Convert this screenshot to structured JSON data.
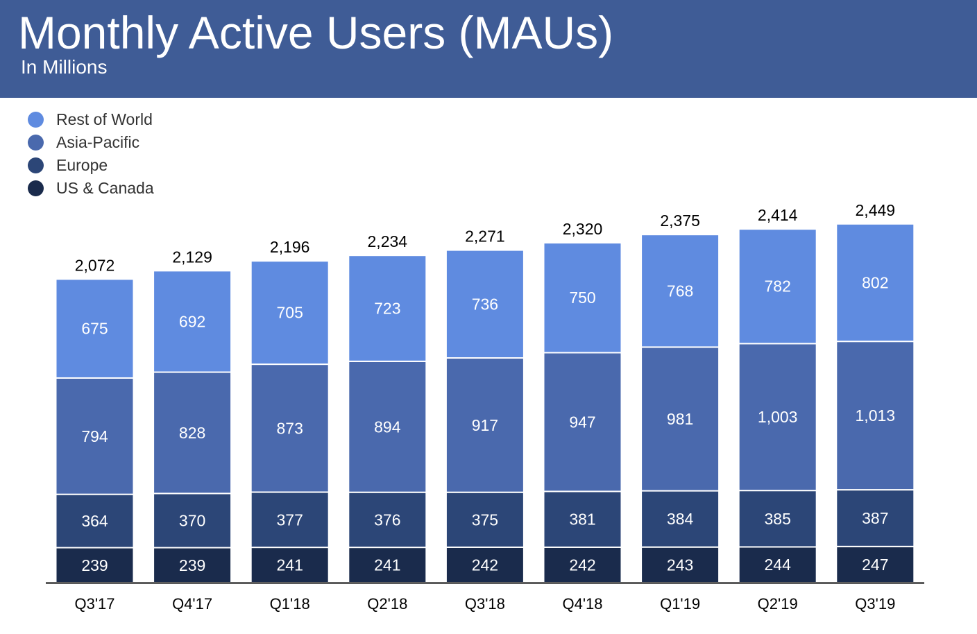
{
  "header": {
    "title": "Monthly Active Users (MAUs)",
    "subtitle": "In Millions"
  },
  "colors": {
    "header_bg": "#3f5c96",
    "rest_of_world": "#5f8be0",
    "asia_pacific": "#4a69ad",
    "europe": "#2c4677",
    "us_canada": "#1a2b4c"
  },
  "chart_data": {
    "type": "bar",
    "stacked": true,
    "title": "Monthly Active Users (MAUs)",
    "subtitle": "In Millions",
    "legend_position": "top-left",
    "grid": false,
    "categories": [
      "Q3'17",
      "Q4'17",
      "Q1'18",
      "Q2'18",
      "Q3'18",
      "Q4'18",
      "Q1'19",
      "Q2'19",
      "Q3'19"
    ],
    "series": [
      {
        "name": "US & Canada",
        "color": "#1a2b4c",
        "values": [
          239,
          239,
          241,
          241,
          242,
          242,
          243,
          244,
          247
        ],
        "labels": [
          "239",
          "239",
          "241",
          "241",
          "242",
          "242",
          "243",
          "244",
          "247"
        ]
      },
      {
        "name": "Europe",
        "color": "#2c4677",
        "values": [
          364,
          370,
          377,
          376,
          375,
          381,
          384,
          385,
          387
        ],
        "labels": [
          "364",
          "370",
          "377",
          "376",
          "375",
          "381",
          "384",
          "385",
          "387"
        ]
      },
      {
        "name": "Asia-Pacific",
        "color": "#4a69ad",
        "values": [
          794,
          828,
          873,
          894,
          917,
          947,
          981,
          1003,
          1013
        ],
        "labels": [
          "794",
          "828",
          "873",
          "894",
          "917",
          "947",
          "981",
          "1,003",
          "1,013"
        ]
      },
      {
        "name": "Rest of World",
        "color": "#5f8be0",
        "values": [
          675,
          692,
          705,
          723,
          736,
          750,
          768,
          782,
          802
        ],
        "labels": [
          "675",
          "692",
          "705",
          "723",
          "736",
          "750",
          "768",
          "782",
          "802"
        ]
      }
    ],
    "totals": [
      2072,
      2129,
      2196,
      2234,
      2271,
      2320,
      2375,
      2414,
      2449
    ],
    "total_labels": [
      "2,072",
      "2,129",
      "2,196",
      "2,234",
      "2,271",
      "2,320",
      "2,375",
      "2,414",
      "2,449"
    ],
    "legend_order": [
      "Rest of World",
      "Asia-Pacific",
      "Europe",
      "US & Canada"
    ],
    "ylim": [
      0,
      2500
    ]
  }
}
